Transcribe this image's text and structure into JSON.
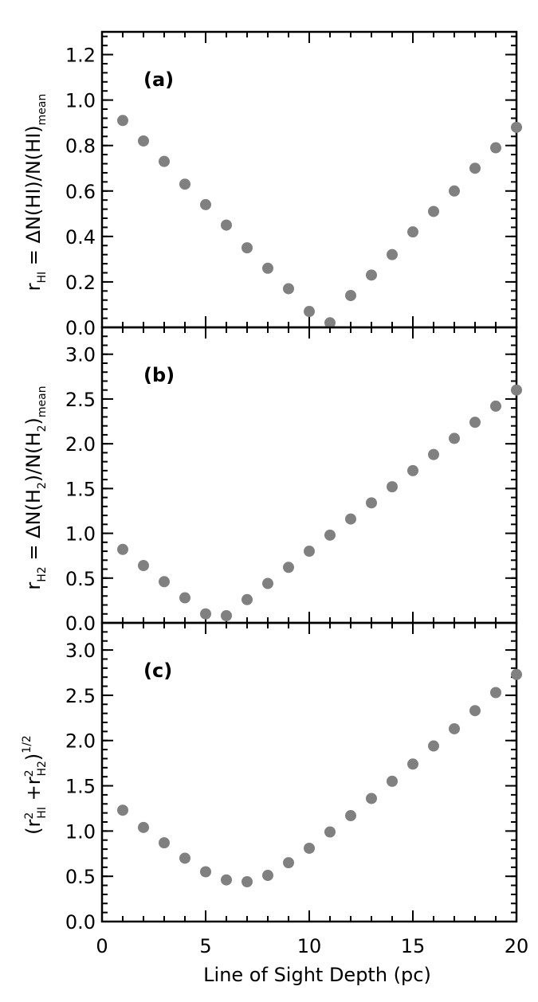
{
  "chart_data": {
    "type": "scatter",
    "xlabel": "Line of Sight Depth (pc)",
    "xlim": [
      0,
      20
    ],
    "xticks": [
      "0",
      "5",
      "10",
      "15",
      "20"
    ],
    "panels": [
      {
        "label": "(a)",
        "ylabel": {
          "base": "r",
          "base_sub": "HI",
          "rest": " = ΔN(HI)/N(HI)",
          "rest_sub": "mean"
        },
        "ylim": [
          0,
          1.3
        ],
        "yticks": [
          "0.0",
          "0.2",
          "0.4",
          "0.6",
          "0.8",
          "1.0",
          "1.2"
        ],
        "x": [
          1,
          2,
          3,
          4,
          5,
          6,
          7,
          8,
          9,
          10,
          11,
          12,
          13,
          14,
          15,
          16,
          17,
          18,
          19,
          20
        ],
        "y": [
          0.91,
          0.82,
          0.73,
          0.63,
          0.54,
          0.45,
          0.35,
          0.26,
          0.17,
          0.07,
          0.02,
          0.14,
          0.23,
          0.32,
          0.42,
          0.51,
          0.6,
          0.7,
          0.79,
          0.88
        ]
      },
      {
        "label": "(b)",
        "ylabel": {
          "base": "r",
          "base_sub": "H2",
          "rest": " = ΔN(H",
          "rest_sub2": "2",
          "rest2": ")/N(H",
          "rest_sub3": "2",
          "rest3": ")",
          "rest_sub": "mean"
        },
        "ylim": [
          0,
          3.3
        ],
        "yticks": [
          "0.0",
          "0.5",
          "1.0",
          "1.5",
          "2.0",
          "2.5",
          "3.0"
        ],
        "x": [
          1,
          2,
          3,
          4,
          5,
          6,
          7,
          8,
          9,
          10,
          11,
          12,
          13,
          14,
          15,
          16,
          17,
          18,
          19,
          20
        ],
        "y": [
          0.82,
          0.64,
          0.46,
          0.28,
          0.1,
          0.08,
          0.26,
          0.44,
          0.62,
          0.8,
          0.98,
          1.16,
          1.34,
          1.52,
          1.7,
          1.88,
          2.06,
          2.24,
          2.42,
          2.6
        ]
      },
      {
        "label": "(c)",
        "ylabel": {
          "text": "(r²HI + r²H2)¹ᐟ²"
        },
        "ylim": [
          0,
          3.3
        ],
        "yticks": [
          "0.0",
          "0.5",
          "1.0",
          "1.5",
          "2.0",
          "2.5",
          "3.0"
        ],
        "x": [
          1,
          2,
          3,
          4,
          5,
          6,
          7,
          8,
          9,
          10,
          11,
          12,
          13,
          14,
          15,
          16,
          17,
          18,
          19,
          20
        ],
        "y": [
          1.23,
          1.04,
          0.87,
          0.7,
          0.55,
          0.46,
          0.44,
          0.51,
          0.65,
          0.81,
          0.99,
          1.17,
          1.36,
          1.55,
          1.74,
          1.94,
          2.13,
          2.33,
          2.53,
          2.73
        ]
      }
    ]
  }
}
